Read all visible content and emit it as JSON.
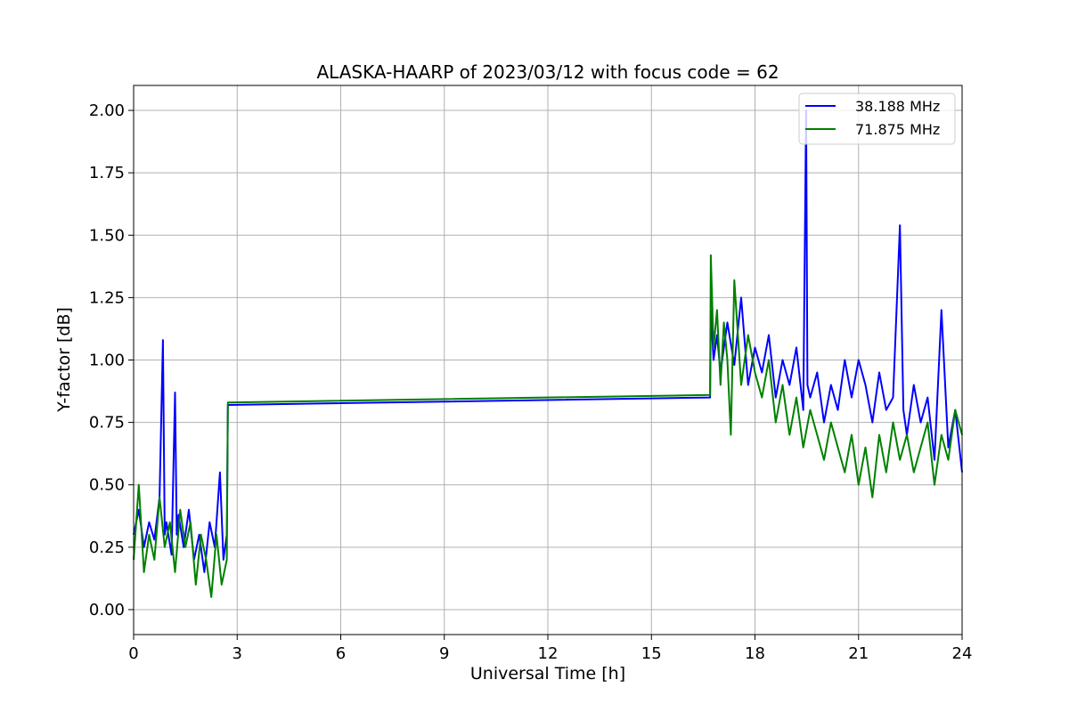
{
  "chart_data": {
    "type": "line",
    "title": "ALASKA-HAARP of 2023/03/12 with focus code = 62",
    "xlabel": "Universal Time [h]",
    "ylabel": "Y-factor [dB]",
    "xlim": [
      0,
      24
    ],
    "ylim": [
      -0.1,
      2.1
    ],
    "xticks": [
      0,
      3,
      6,
      9,
      12,
      15,
      18,
      21,
      24
    ],
    "xtick_labels": [
      "0",
      "3",
      "6",
      "9",
      "12",
      "15",
      "18",
      "21",
      "24"
    ],
    "yticks": [
      0.0,
      0.25,
      0.5,
      0.75,
      1.0,
      1.25,
      1.5,
      1.75,
      2.0
    ],
    "ytick_labels": [
      "0.00",
      "0.25",
      "0.50",
      "0.75",
      "1.00",
      "1.25",
      "1.50",
      "1.75",
      "2.00"
    ],
    "grid": true,
    "legend_position": "top-right",
    "series": [
      {
        "name": "38.188 MHz",
        "color": "#0000ff",
        "x": [
          0.0,
          0.15,
          0.3,
          0.45,
          0.6,
          0.75,
          0.85,
          0.9,
          0.95,
          1.1,
          1.2,
          1.25,
          1.3,
          1.45,
          1.6,
          1.75,
          1.9,
          2.05,
          2.2,
          2.35,
          2.5,
          2.6,
          2.7,
          2.73,
          16.7,
          16.72,
          16.8,
          16.9,
          17.0,
          17.1,
          17.2,
          17.4,
          17.6,
          17.8,
          18.0,
          18.2,
          18.4,
          18.6,
          18.8,
          19.0,
          19.2,
          19.4,
          19.48,
          19.52,
          19.6,
          19.8,
          20.0,
          20.2,
          20.4,
          20.6,
          20.8,
          21.0,
          21.2,
          21.4,
          21.6,
          21.8,
          22.0,
          22.2,
          22.3,
          22.4,
          22.6,
          22.8,
          23.0,
          23.2,
          23.4,
          23.6,
          23.8,
          24.0
        ],
        "y": [
          0.3,
          0.4,
          0.25,
          0.35,
          0.28,
          0.45,
          1.08,
          0.3,
          0.35,
          0.22,
          0.87,
          0.3,
          0.38,
          0.25,
          0.4,
          0.2,
          0.3,
          0.15,
          0.35,
          0.25,
          0.55,
          0.2,
          0.3,
          0.82,
          0.85,
          1.2,
          1.0,
          1.1,
          0.95,
          1.05,
          1.15,
          0.98,
          1.25,
          0.9,
          1.05,
          0.95,
          1.1,
          0.85,
          1.0,
          0.9,
          1.05,
          0.8,
          2.0,
          0.9,
          0.85,
          0.95,
          0.75,
          0.9,
          0.8,
          1.0,
          0.85,
          1.0,
          0.9,
          0.75,
          0.95,
          0.8,
          0.85,
          1.54,
          0.8,
          0.7,
          0.9,
          0.75,
          0.85,
          0.6,
          1.2,
          0.65,
          0.8,
          0.55
        ]
      },
      {
        "name": "71.875 MHz",
        "color": "#008000",
        "x": [
          0.0,
          0.15,
          0.3,
          0.45,
          0.6,
          0.75,
          0.9,
          1.05,
          1.2,
          1.35,
          1.5,
          1.65,
          1.8,
          1.95,
          2.1,
          2.25,
          2.4,
          2.55,
          2.7,
          2.73,
          16.7,
          16.72,
          16.8,
          16.9,
          17.0,
          17.1,
          17.2,
          17.3,
          17.4,
          17.6,
          17.8,
          18.0,
          18.2,
          18.4,
          18.6,
          18.8,
          19.0,
          19.2,
          19.4,
          19.6,
          19.8,
          20.0,
          20.2,
          20.4,
          20.6,
          20.8,
          21.0,
          21.2,
          21.4,
          21.6,
          21.8,
          22.0,
          22.2,
          22.4,
          22.6,
          22.8,
          23.0,
          23.2,
          23.4,
          23.6,
          23.8,
          24.0
        ],
        "y": [
          0.2,
          0.5,
          0.15,
          0.3,
          0.2,
          0.45,
          0.25,
          0.35,
          0.15,
          0.4,
          0.25,
          0.35,
          0.1,
          0.3,
          0.2,
          0.05,
          0.3,
          0.1,
          0.2,
          0.83,
          0.86,
          1.42,
          1.05,
          1.2,
          0.9,
          1.15,
          1.0,
          0.7,
          1.32,
          0.9,
          1.1,
          0.95,
          0.85,
          1.0,
          0.75,
          0.9,
          0.7,
          0.85,
          0.65,
          0.8,
          0.7,
          0.6,
          0.75,
          0.65,
          0.55,
          0.7,
          0.5,
          0.65,
          0.45,
          0.7,
          0.55,
          0.75,
          0.6,
          0.7,
          0.55,
          0.65,
          0.75,
          0.5,
          0.7,
          0.6,
          0.8,
          0.7
        ]
      }
    ]
  }
}
